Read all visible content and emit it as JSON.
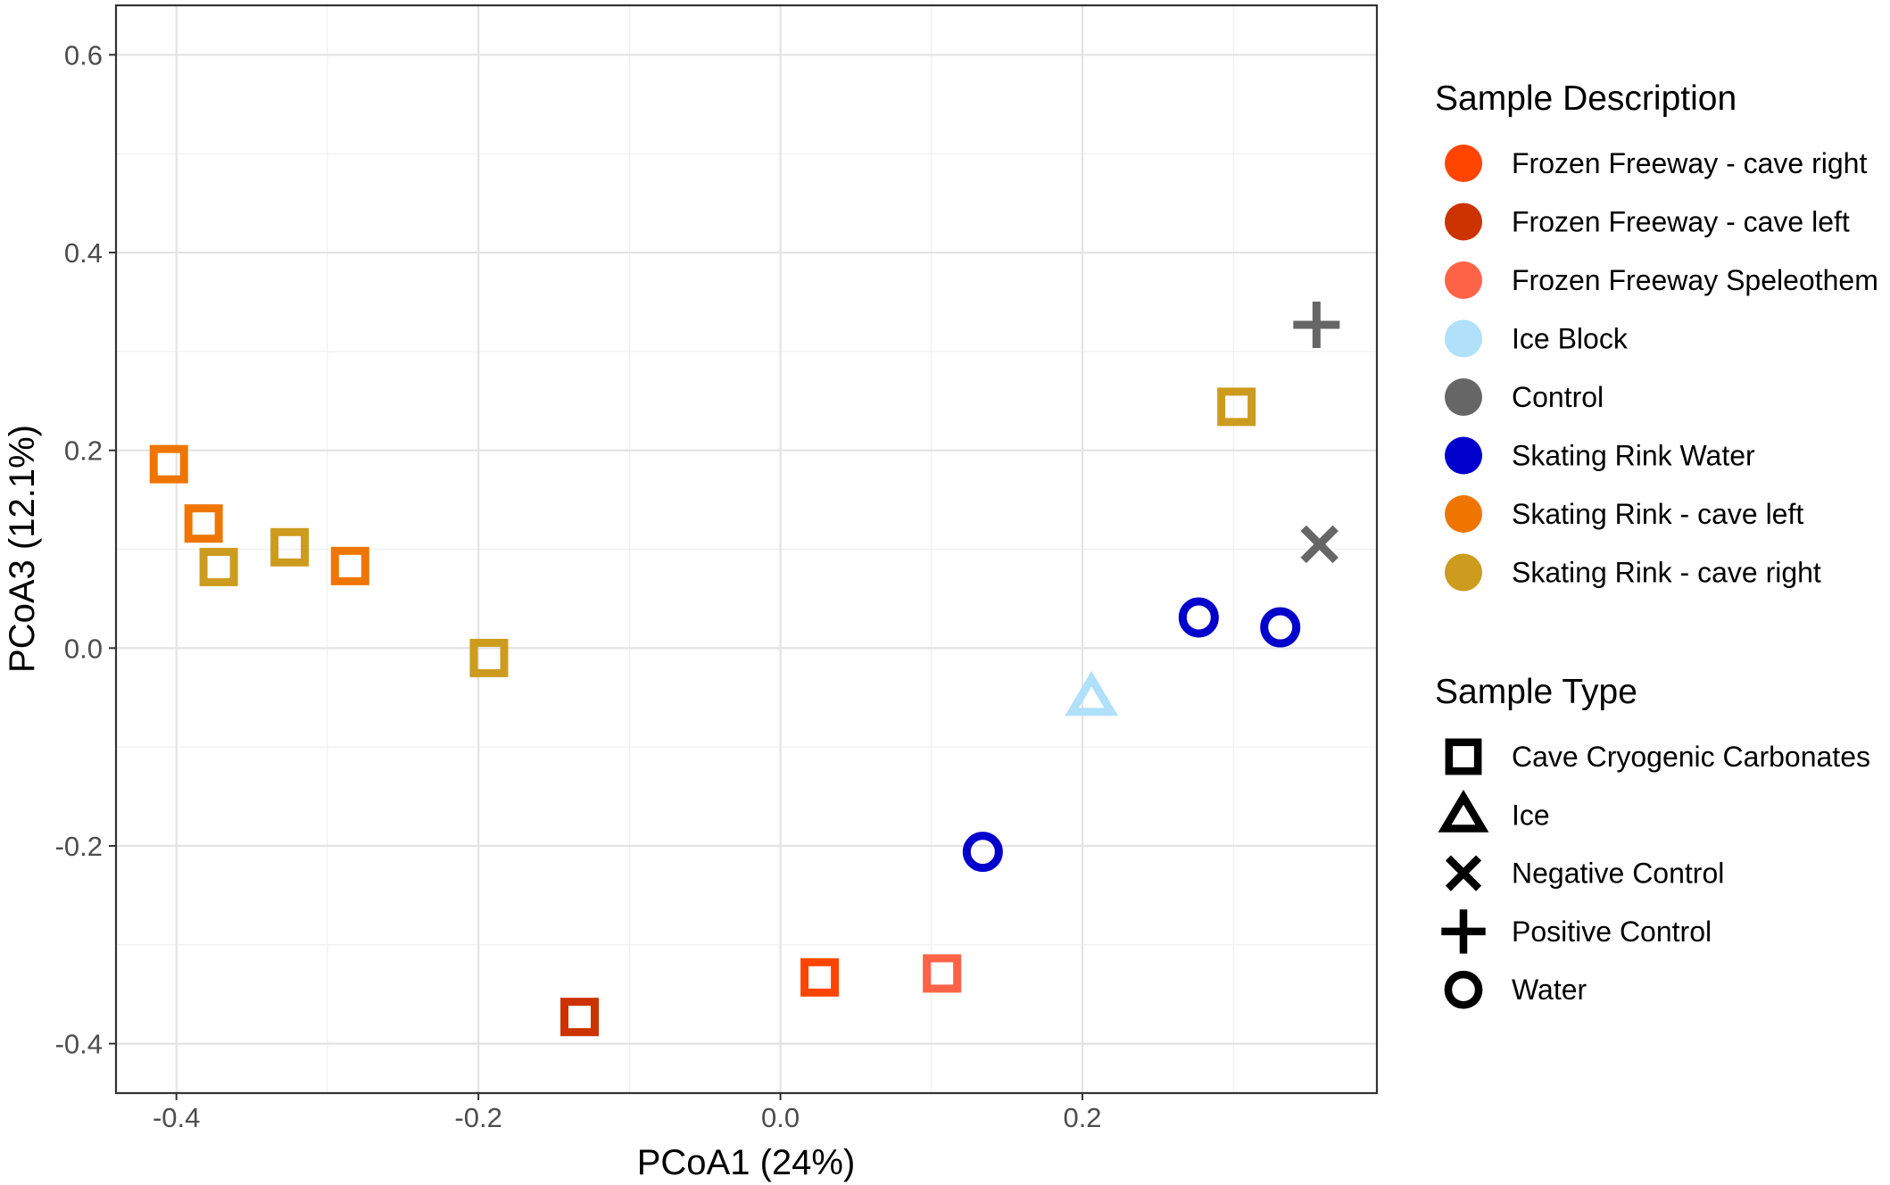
{
  "chart_data": {
    "type": "scatter",
    "xlabel": "PCoA1 (24%)",
    "ylabel": "PCoA3 (12.1%)",
    "xlim": [
      -0.44,
      0.395
    ],
    "ylim": [
      -0.45,
      0.65
    ],
    "x_ticks": [
      -0.4,
      -0.2,
      0.0,
      0.2
    ],
    "x_tick_labels": [
      "-0.4",
      "-0.2",
      "0.0",
      "0.2"
    ],
    "y_ticks": [
      -0.4,
      -0.2,
      0.0,
      0.2,
      0.4,
      0.6
    ],
    "y_tick_labels": [
      "-0.4",
      "-0.2",
      "0.0",
      "0.2",
      "0.4",
      "0.6"
    ],
    "grid": true,
    "legend_position": "right",
    "legends": [
      {
        "title": "Sample Description",
        "kind": "color",
        "entries": [
          {
            "label": "Frozen Freeway - cave right",
            "color": "#FF4500"
          },
          {
            "label": "Frozen Freeway - cave left",
            "color": "#CC3300"
          },
          {
            "label": "Frozen Freeway Speleothem",
            "color": "#FF6347"
          },
          {
            "label": "Ice Block",
            "color": "#B0E0FA"
          },
          {
            "label": "Control",
            "color": "#666666"
          },
          {
            "label": "Skating Rink Water",
            "color": "#0000CC"
          },
          {
            "label": "Skating Rink - cave left",
            "color": "#EE7600"
          },
          {
            "label": "Skating Rink - cave right",
            "color": "#CD9B1D"
          }
        ]
      },
      {
        "title": "Sample Type",
        "kind": "shape",
        "entries": [
          {
            "label": "Cave Cryogenic Carbonates",
            "shape": "square"
          },
          {
            "label": "Ice",
            "shape": "triangle"
          },
          {
            "label": "Negative Control",
            "shape": "cross"
          },
          {
            "label": "Positive Control",
            "shape": "plus"
          },
          {
            "label": "Water",
            "shape": "circle"
          }
        ]
      }
    ],
    "points": [
      {
        "x": -0.405,
        "y": 0.186,
        "group": "Skating Rink - cave left",
        "shape": "square"
      },
      {
        "x": -0.382,
        "y": 0.126,
        "group": "Skating Rink - cave left",
        "shape": "square"
      },
      {
        "x": -0.372,
        "y": 0.082,
        "group": "Skating Rink - cave right",
        "shape": "square"
      },
      {
        "x": -0.325,
        "y": 0.102,
        "group": "Skating Rink - cave right",
        "shape": "square"
      },
      {
        "x": -0.285,
        "y": 0.083,
        "group": "Skating Rink - cave left",
        "shape": "square"
      },
      {
        "x": -0.193,
        "y": -0.01,
        "group": "Skating Rink - cave right",
        "shape": "square"
      },
      {
        "x": -0.133,
        "y": -0.373,
        "group": "Frozen Freeway - cave left",
        "shape": "square"
      },
      {
        "x": 0.026,
        "y": -0.333,
        "group": "Frozen Freeway - cave right",
        "shape": "square"
      },
      {
        "x": 0.107,
        "y": -0.329,
        "group": "Frozen Freeway Speleothem",
        "shape": "square"
      },
      {
        "x": 0.134,
        "y": -0.206,
        "group": "Skating Rink Water",
        "shape": "circle"
      },
      {
        "x": 0.206,
        "y": -0.05,
        "group": "Ice Block",
        "shape": "triangle"
      },
      {
        "x": 0.277,
        "y": 0.031,
        "group": "Skating Rink Water",
        "shape": "circle"
      },
      {
        "x": 0.302,
        "y": 0.244,
        "group": "Skating Rink - cave right",
        "shape": "square"
      },
      {
        "x": 0.331,
        "y": 0.021,
        "group": "Skating Rink Water",
        "shape": "circle"
      },
      {
        "x": 0.355,
        "y": 0.327,
        "group": "Control",
        "shape": "plus"
      },
      {
        "x": 0.357,
        "y": 0.105,
        "group": "Control",
        "shape": "cross"
      }
    ]
  }
}
